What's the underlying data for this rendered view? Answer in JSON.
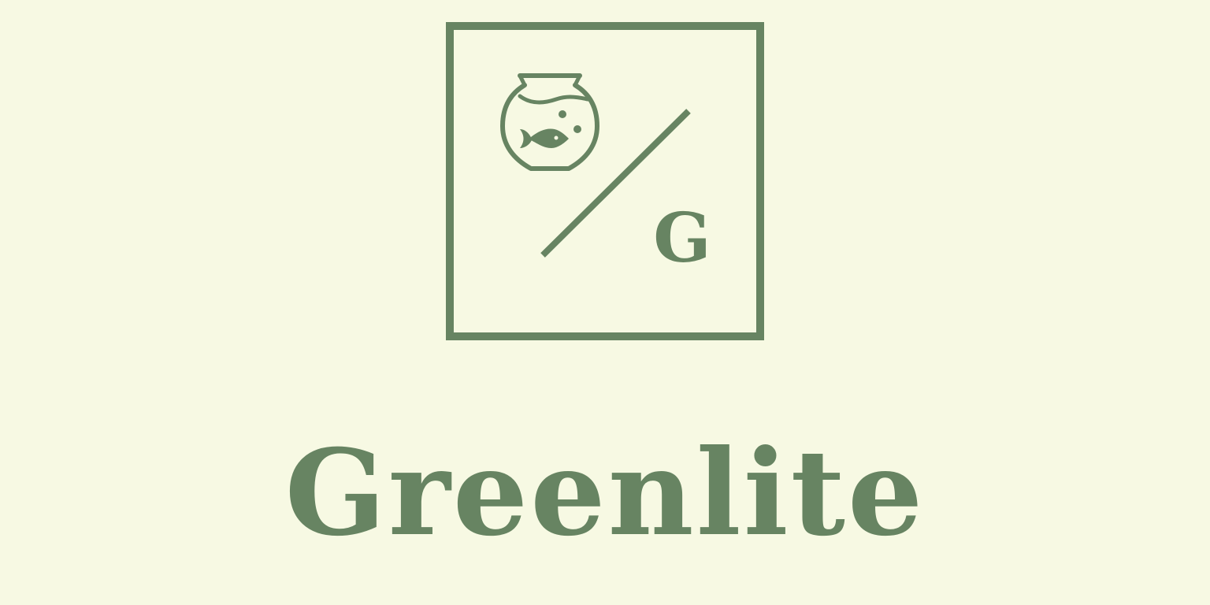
{
  "brand": {
    "name": "Greenlite",
    "initial": "G",
    "color": "#678462",
    "background": "#f7f9e3"
  },
  "emblem": {
    "icon": "fishbowl-icon",
    "divider": "diagonal-slash"
  }
}
